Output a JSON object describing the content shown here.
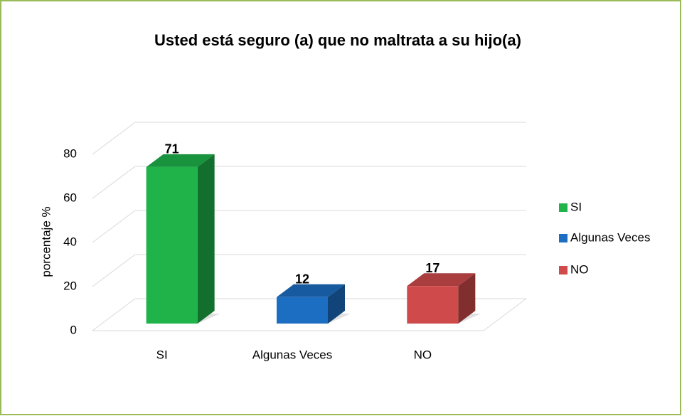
{
  "chart_data": {
    "type": "bar3d",
    "title": "Usted está seguro (a) que no maltrata a su hijo(a)",
    "y_label": "porcentaje %",
    "categories": [
      "SI",
      "Algunas Veces",
      "NO"
    ],
    "values": [
      71,
      12,
      17
    ],
    "colors": [
      "#1fb34a",
      "#1c6ec2",
      "#cf4a4a"
    ],
    "ylim": [
      0,
      80
    ],
    "yticks": [
      0,
      20,
      40,
      60,
      80
    ],
    "grid": true,
    "legend": "right"
  }
}
